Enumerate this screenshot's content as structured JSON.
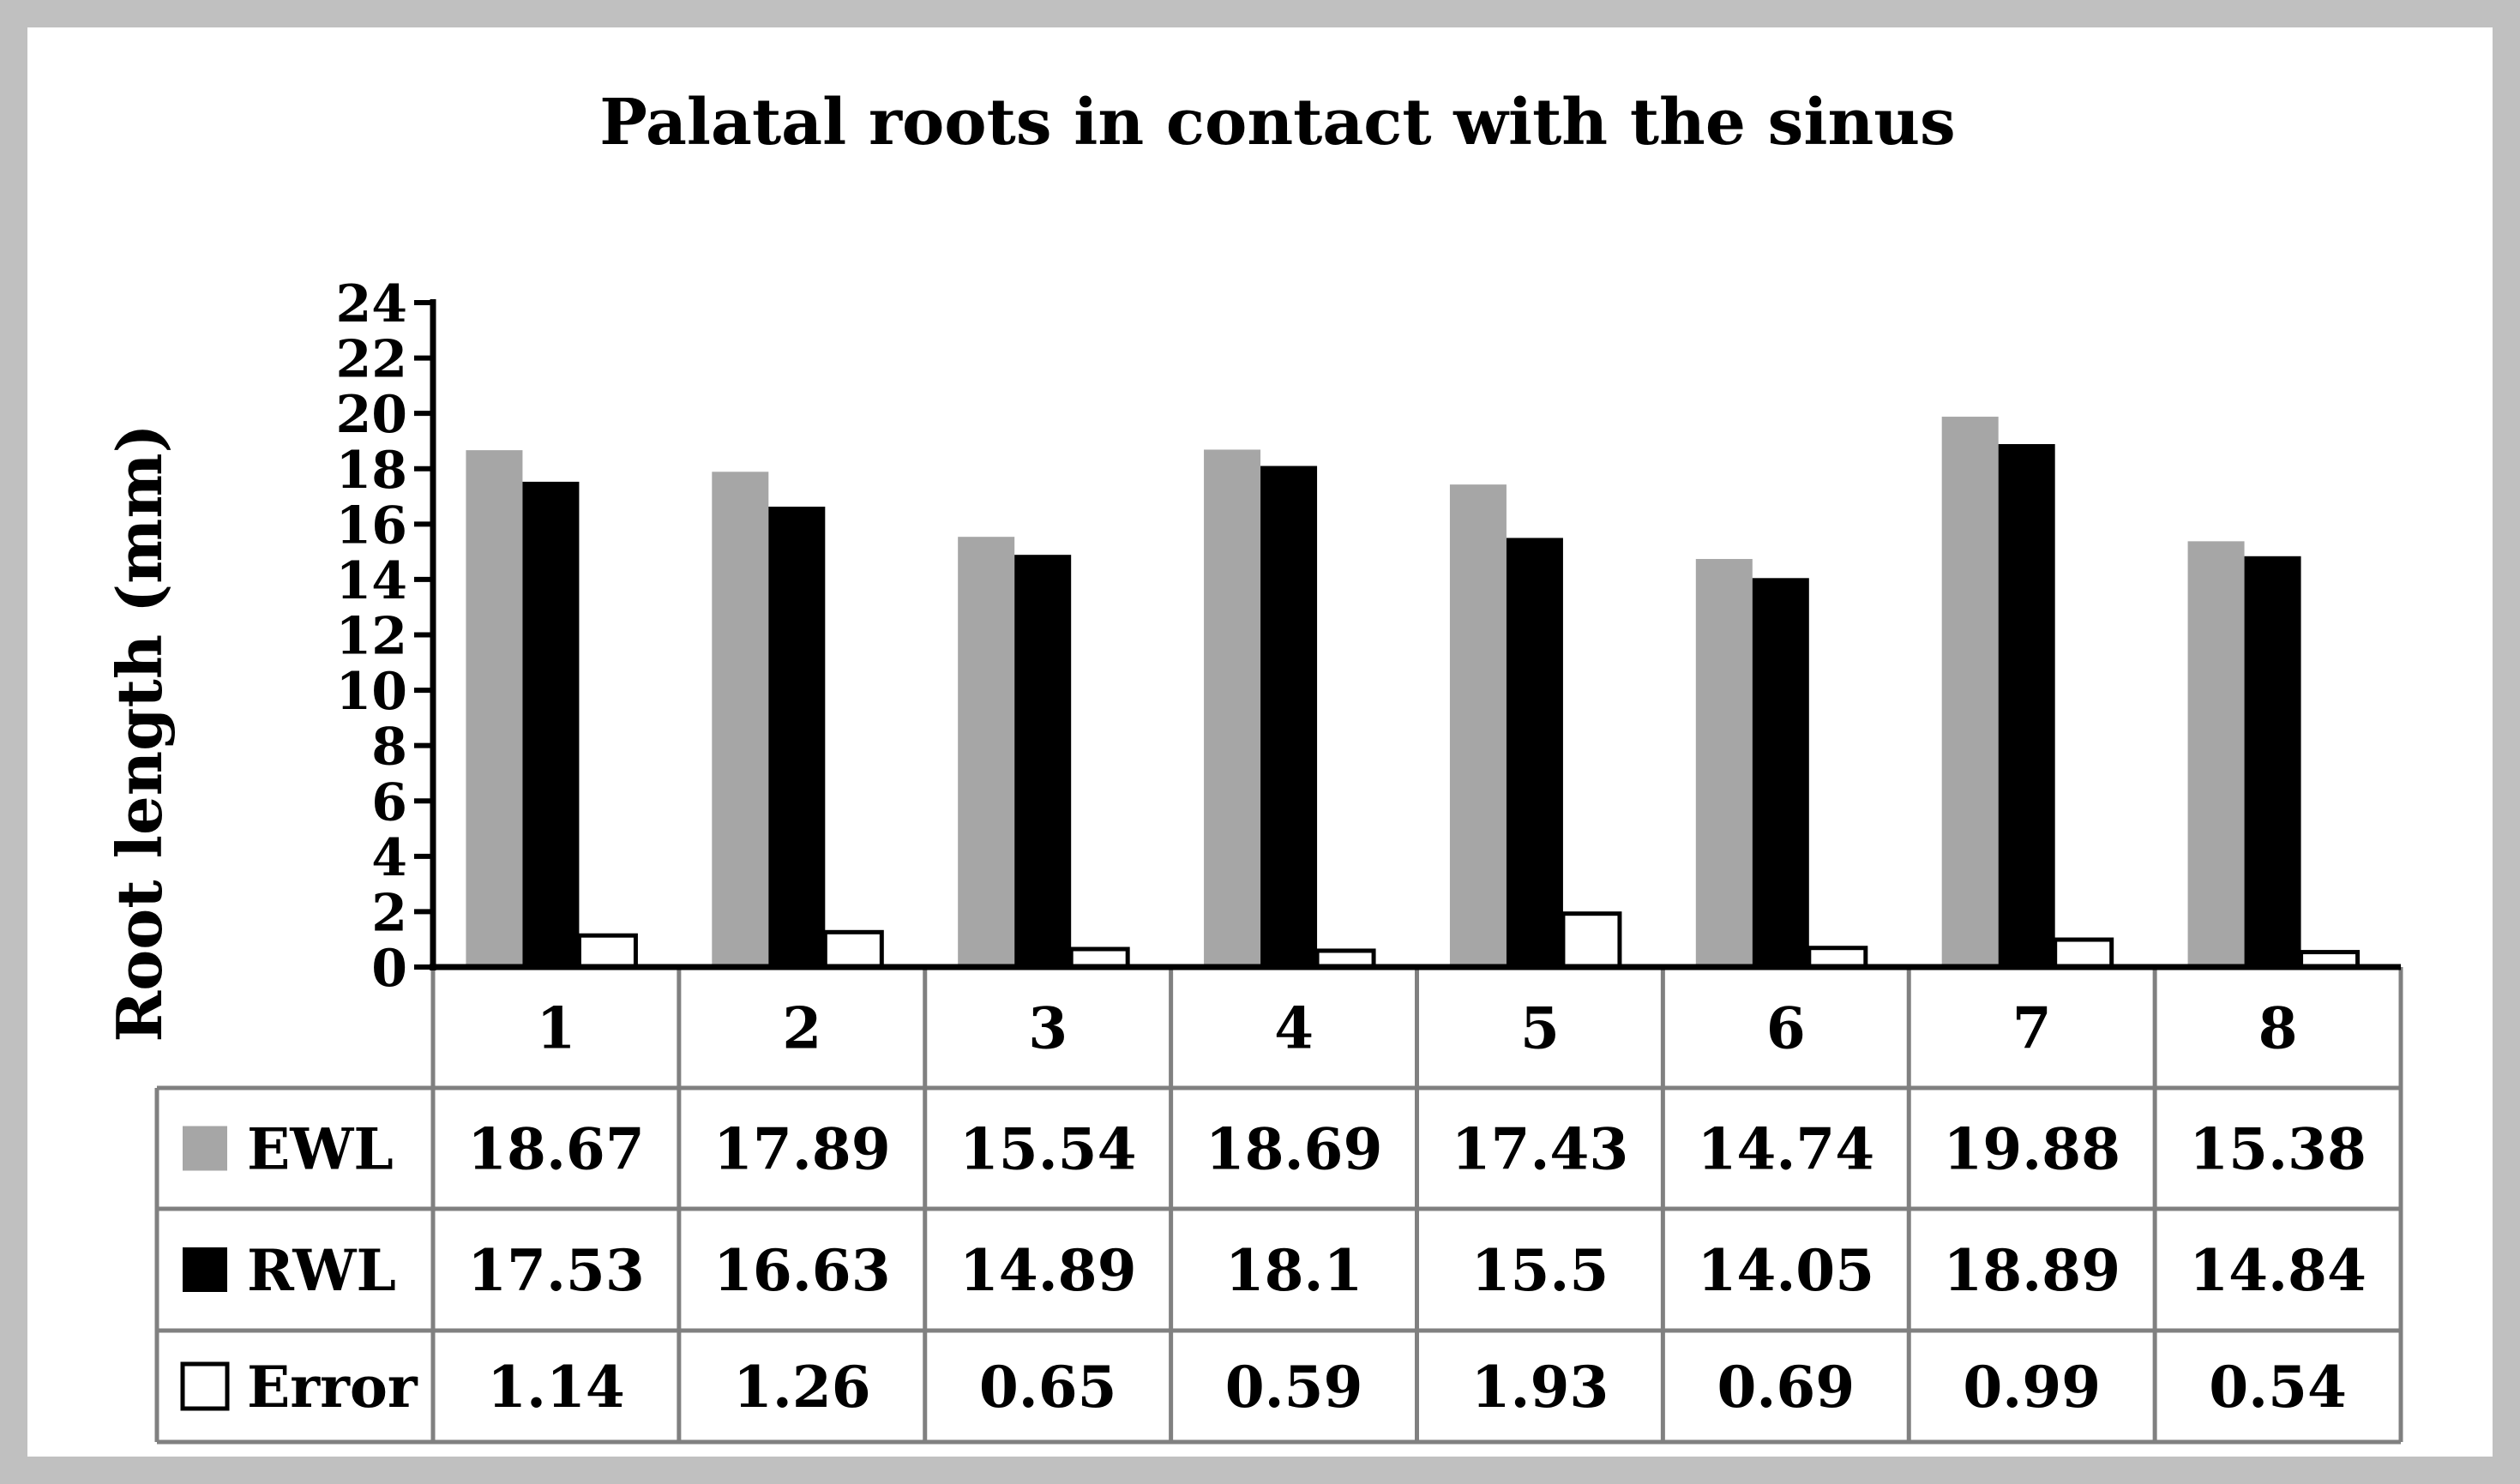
{
  "chart_data": {
    "type": "bar",
    "title": "Palatal roots in contact with the sinus",
    "ylabel": "Root length (mm)",
    "xlabel": "",
    "ylim": [
      0,
      24
    ],
    "yticks": [
      "0",
      "2",
      "4",
      "6",
      "8",
      "10",
      "12",
      "14",
      "16",
      "18",
      "20",
      "22",
      "24"
    ],
    "categories": [
      "1",
      "2",
      "3",
      "4",
      "5",
      "6",
      "7",
      "8"
    ],
    "grid": false,
    "legend": "data-table",
    "series": [
      {
        "name": "EWL",
        "color": "#a6a6a6",
        "values": [
          18.67,
          17.89,
          15.54,
          18.69,
          17.43,
          14.74,
          19.88,
          15.38
        ],
        "labels": [
          "18.67",
          "17.89",
          "15.54",
          "18.69",
          "17.43",
          "14.74",
          "19.88",
          "15.38"
        ]
      },
      {
        "name": "RWL",
        "color": "#000000",
        "values": [
          17.53,
          16.63,
          14.89,
          18.1,
          15.5,
          14.05,
          18.89,
          14.84
        ],
        "labels": [
          "17.53",
          "16.63",
          "14.89",
          "18.1",
          "15.5",
          "14.05",
          "18.89",
          "14.84"
        ]
      },
      {
        "name": "Error",
        "color": "#ffffff",
        "values": [
          1.14,
          1.26,
          0.65,
          0.59,
          1.93,
          0.69,
          0.99,
          0.54
        ],
        "labels": [
          "1.14",
          "1.26",
          "0.65",
          "0.59",
          "1.93",
          "0.69",
          "0.99",
          "0.54"
        ]
      }
    ],
    "colors": {
      "frame_border": "#c0c0c0",
      "table_border": "#808080",
      "axis": "#000000"
    }
  }
}
